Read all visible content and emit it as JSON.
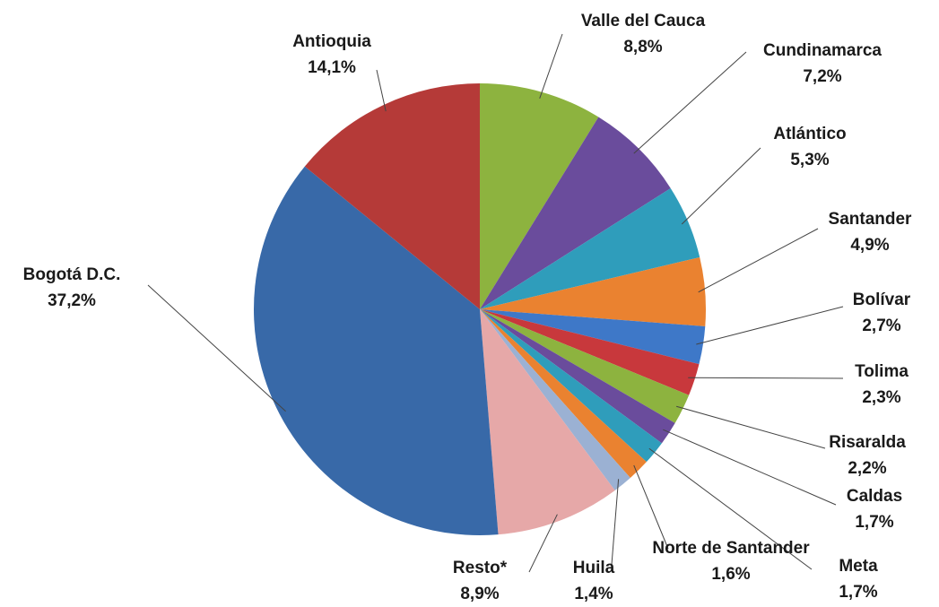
{
  "chart_data": {
    "type": "pie",
    "categories": [
      "Valle del Cauca",
      "Cundinamarca",
      "Atlántico",
      "Santander",
      "Bolívar",
      "Tolima",
      "Risaralda",
      "Caldas",
      "Meta",
      "Norte de Santander",
      "Huila",
      "Resto*",
      "Bogotá D.C.",
      "Antioquia"
    ],
    "values": [
      8.8,
      7.2,
      5.3,
      4.9,
      2.7,
      2.3,
      2.2,
      1.7,
      1.7,
      1.6,
      1.4,
      8.9,
      37.2,
      14.1
    ],
    "value_labels": [
      "8,8%",
      "7,2%",
      "5,3%",
      "4,9%",
      "2,7%",
      "2,3%",
      "2,2%",
      "1,7%",
      "1,7%",
      "1,6%",
      "1,4%",
      "8,9%",
      "37,2%",
      "14,1%"
    ],
    "colors": [
      "#8db33f",
      "#6a4c9c",
      "#2f9dbb",
      "#ea8230",
      "#3e78c8",
      "#c8383c",
      "#8db33f",
      "#6a4c9c",
      "#2f9dbb",
      "#ea8230",
      "#9bb1d3",
      "#e6a8a8",
      "#3869a8",
      "#b53a38"
    ]
  }
}
